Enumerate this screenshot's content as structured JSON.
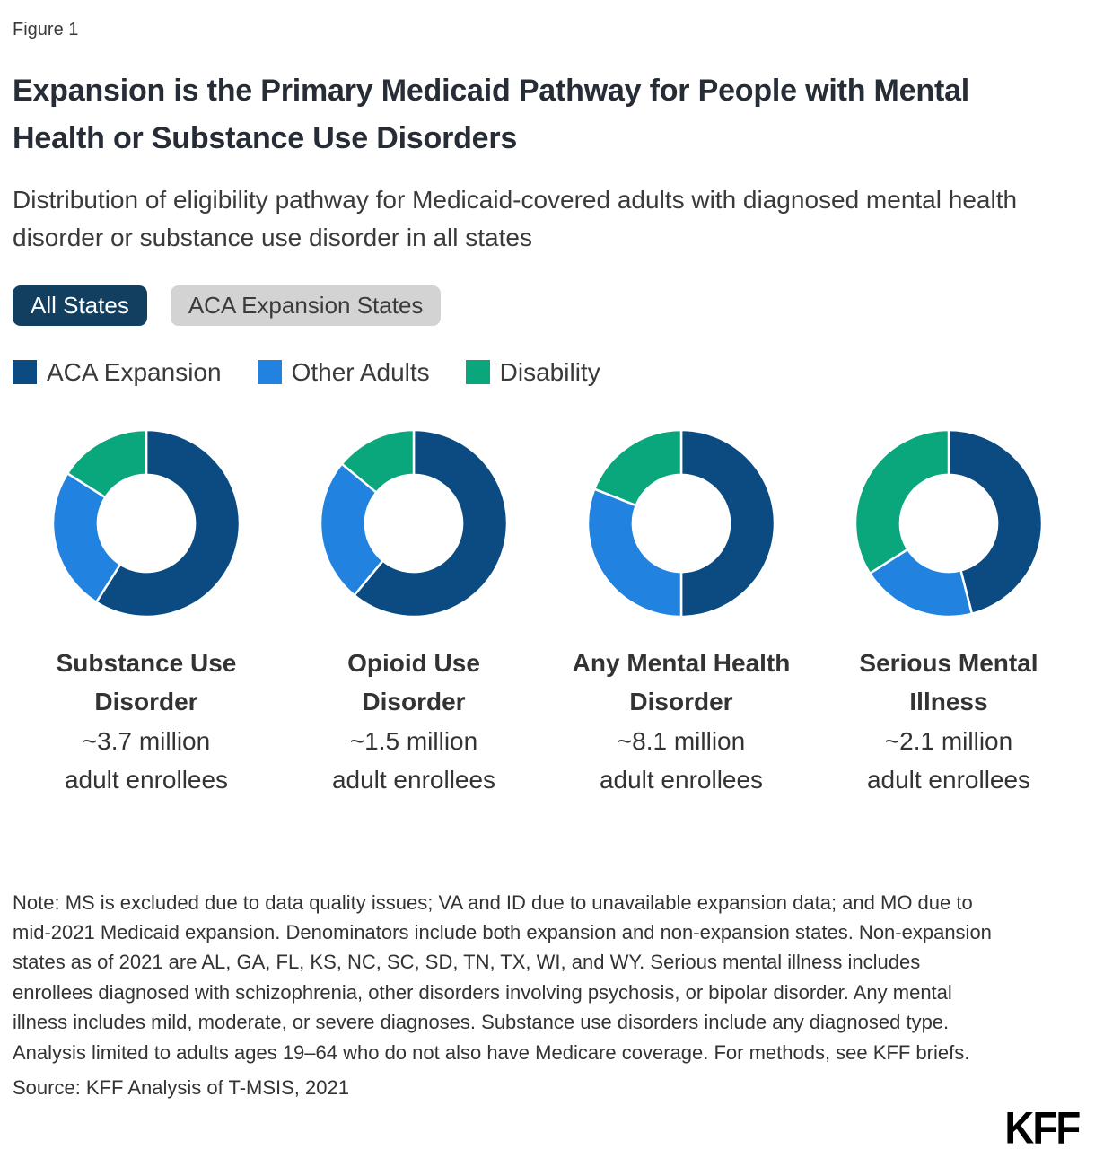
{
  "figure_label": "Figure 1",
  "title": "Expansion is the Primary Medicaid Pathway for People with Mental Health or Substance Use Disorders",
  "subtitle": "Distribution of eligibility pathway for Medicaid-covered adults with diagnosed mental health disorder or substance use disorder in all states",
  "tabs": [
    {
      "label": "All States",
      "active": true
    },
    {
      "label": "ACA Expansion States",
      "active": false
    }
  ],
  "tab_styles": {
    "active_bg": "#123F5F",
    "active_text": "#ffffff",
    "inactive_bg": "#d3d3d3",
    "inactive_text": "#3b3b3b"
  },
  "legend": [
    {
      "label": "ACA Expansion",
      "color": "#0B4B82"
    },
    {
      "label": "Other Adults",
      "color": "#2183DF"
    },
    {
      "label": "Disability",
      "color": "#0AA67C"
    }
  ],
  "chart_data": {
    "type": "pie",
    "donut": true,
    "start_angle_deg": 0,
    "direction": "clockwise",
    "inner_radius_ratio": 0.52,
    "legend_position": "top",
    "categories": [
      "ACA Expansion",
      "Other Adults",
      "Disability"
    ],
    "colors": [
      "#0B4B82",
      "#2183DF",
      "#0AA67C"
    ],
    "charts": [
      {
        "title": "Substance Use Disorder",
        "amount": "~3.7 million",
        "amount_unit": "adult enrollees",
        "values_pct": [
          59,
          25,
          16
        ]
      },
      {
        "title": "Opioid Use Disorder",
        "amount": "~1.5 million",
        "amount_unit": "adult enrollees",
        "values_pct": [
          61,
          25,
          14
        ]
      },
      {
        "title": "Any Mental Health Disorder",
        "amount": "~8.1 million",
        "amount_unit": "adult enrollees",
        "values_pct": [
          50,
          31,
          19
        ]
      },
      {
        "title": "Serious Mental Illness",
        "amount": "~2.1 million",
        "amount_unit": "adult enrollees",
        "values_pct": [
          46,
          20,
          34
        ]
      }
    ]
  },
  "note": "Note: MS is excluded due to data quality issues; VA and ID due to unavailable expansion data; and MO due to mid-2021 Medicaid expansion. Denominators include both expansion and non-expansion states. Non-expansion states as of 2021 are AL, GA, FL, KS, NC, SC, SD, TN, TX, WI, and WY. Serious mental illness includes enrollees diagnosed with schizophrenia, other disorders involving psychosis, or bipolar disorder. Any mental illness includes mild, moderate, or severe diagnoses. Substance use disorders include any diagnosed type. Analysis limited to adults ages 19–64 who do not also have Medicare coverage. For methods, see KFF briefs.",
  "source": "Source: KFF Analysis of T-MSIS, 2021",
  "logo_text": "KFF"
}
